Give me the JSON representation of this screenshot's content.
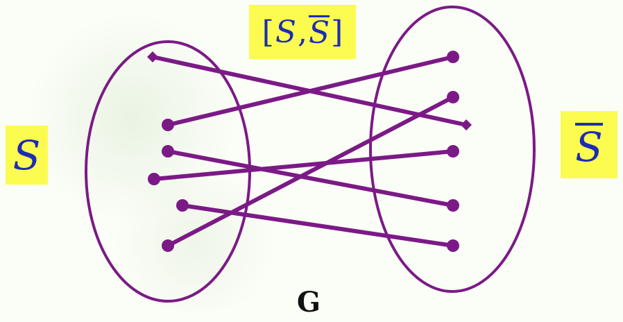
{
  "labels": {
    "set_s": "S",
    "set_s_complement": "S",
    "cut_open": "[",
    "cut_s": "S",
    "cut_sep": ",",
    "cut_s_complement": "S",
    "cut_close": "]",
    "graph_name": "G"
  },
  "colors": {
    "edge": "#7b1a86",
    "label_background": "#fcfc50",
    "label_text": "#1d2cb5",
    "graph_name": "#111111"
  },
  "edges": [
    {
      "from": "s1",
      "to": "t3"
    },
    {
      "from": "s2",
      "to": "t1"
    },
    {
      "from": "s3",
      "to": "t5"
    },
    {
      "from": "s4",
      "to": "t4"
    },
    {
      "from": "s5",
      "to": "t6"
    },
    {
      "from": "s6",
      "to": "t2"
    }
  ]
}
